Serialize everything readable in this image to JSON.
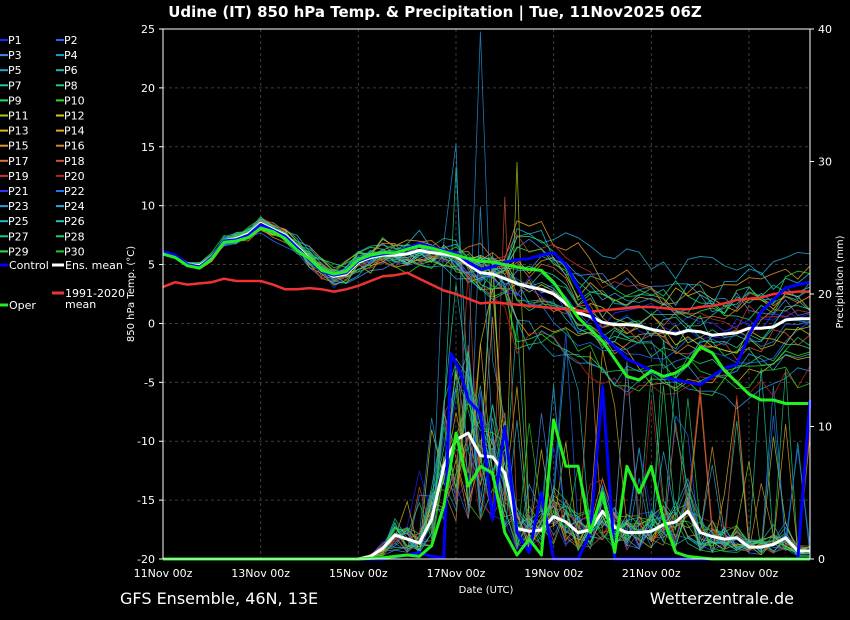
{
  "chart_data": {
    "type": "line",
    "title": "Udine  (IT)  850 hPa Temp. & Precipitation | Tue, 11Nov2025 06Z",
    "ylabel": "850 hPa Temp. (°C)",
    "y2label": "Precipitation (mm)",
    "xlabel": "Date (UTC)",
    "ylim": [
      -20,
      25
    ],
    "y2lim": [
      0,
      40
    ],
    "xlim": [
      0,
      13.25
    ],
    "yticks": [
      25,
      20,
      15,
      10,
      5,
      0,
      -5,
      -10,
      -15,
      -20
    ],
    "y2ticks": [
      40,
      30,
      20,
      10,
      0
    ],
    "x_units": "days since 11Nov 00z",
    "xticks": [
      {
        "x": 0,
        "label": "11Nov 00z"
      },
      {
        "x": 2,
        "label": "13Nov 00z"
      },
      {
        "x": 4,
        "label": "15Nov 00z"
      },
      {
        "x": 6,
        "label": "17Nov 00z"
      },
      {
        "x": 8,
        "label": "19Nov 00z"
      },
      {
        "x": 10,
        "label": "21Nov 00z"
      },
      {
        "x": 12,
        "label": "23Nov 00z"
      }
    ],
    "grid": true,
    "legend_position": "left",
    "legend": [
      {
        "name": "P1",
        "color": "#2222ff"
      },
      {
        "name": "P2",
        "color": "#2266ff"
      },
      {
        "name": "P3",
        "color": "#4488ee"
      },
      {
        "name": "P4",
        "color": "#2299dd"
      },
      {
        "name": "P5",
        "color": "#22aacc"
      },
      {
        "name": "P6",
        "color": "#22bbaa"
      },
      {
        "name": "P7",
        "color": "#22ccaa"
      },
      {
        "name": "P8",
        "color": "#22cc77"
      },
      {
        "name": "P9",
        "color": "#22dd66"
      },
      {
        "name": "P10",
        "color": "#33dd22"
      },
      {
        "name": "P11",
        "color": "#aacc22"
      },
      {
        "name": "P12",
        "color": "#cccc22"
      },
      {
        "name": "P13",
        "color": "#ddbb22"
      },
      {
        "name": "P14",
        "color": "#ddaa22"
      },
      {
        "name": "P15",
        "color": "#dd9933"
      },
      {
        "name": "P16",
        "color": "#cc8833"
      },
      {
        "name": "P17",
        "color": "#dd7733"
      },
      {
        "name": "P18",
        "color": "#cc5533"
      },
      {
        "name": "P19",
        "color": "#cc3333"
      },
      {
        "name": "P20",
        "color": "#bb2222"
      },
      {
        "name": "P21",
        "color": "#3333ff"
      },
      {
        "name": "P22",
        "color": "#2277ee"
      },
      {
        "name": "P23",
        "color": "#3399dd"
      },
      {
        "name": "P24",
        "color": "#22aadd"
      },
      {
        "name": "P25",
        "color": "#22bbcc"
      },
      {
        "name": "P26",
        "color": "#22ccaa"
      },
      {
        "name": "P27",
        "color": "#22cc88"
      },
      {
        "name": "P28",
        "color": "#22cc66"
      },
      {
        "name": "P29",
        "color": "#33dd44"
      },
      {
        "name": "P30",
        "color": "#22cc22"
      },
      {
        "name": "Control",
        "color": "#0000ff"
      },
      {
        "name": "Ens. mean",
        "color": "#ffffff"
      },
      {
        "name": "Oper",
        "color": "#22ee22"
      },
      {
        "name": "1991-2020 mean",
        "color": "#ee3333"
      }
    ],
    "series": [
      {
        "name": "Ens. mean",
        "axis": "temp",
        "color": "#ffffff",
        "x": [
          0,
          0.25,
          0.5,
          0.75,
          1,
          1.25,
          1.5,
          1.75,
          2,
          2.25,
          2.5,
          2.75,
          3,
          3.25,
          3.5,
          3.75,
          4,
          4.25,
          4.5,
          4.75,
          5,
          5.25,
          5.5,
          5.75,
          6,
          6.25,
          6.5,
          6.75,
          7,
          7.25,
          7.5,
          7.75,
          8,
          8.25,
          8.5,
          8.75,
          9,
          9.25,
          9.5,
          9.75,
          10,
          10.25,
          10.5,
          10.75,
          11,
          11.25,
          11.5,
          11.75,
          12,
          12.25,
          12.5,
          12.75,
          13,
          13.25
        ],
        "values": [
          6,
          5.7,
          5,
          4.9,
          5.6,
          7,
          7.2,
          7.6,
          8.5,
          8,
          7.5,
          6.5,
          5.5,
          4.5,
          4,
          4.2,
          5.2,
          5.6,
          5.8,
          5.8,
          5.9,
          6.2,
          6,
          5.9,
          5.7,
          5,
          4.3,
          4.2,
          3.8,
          3.4,
          3.1,
          2.9,
          2.5,
          1.7,
          0.9,
          0.6,
          0.1,
          -0.1,
          -0.1,
          -0.2,
          -0.5,
          -0.7,
          -0.9,
          -0.6,
          -0.7,
          -1,
          -0.9,
          -0.8,
          -0.4,
          -0.4,
          -0.3,
          0.3,
          0.4,
          0.4
        ]
      },
      {
        "name": "1991-2020 mean",
        "axis": "temp",
        "color": "#ee3333",
        "x": [
          0,
          0.25,
          0.5,
          0.75,
          1,
          1.25,
          1.5,
          1.75,
          2,
          2.25,
          2.5,
          2.75,
          3,
          3.25,
          3.5,
          3.75,
          4,
          4.25,
          4.5,
          4.75,
          5,
          5.25,
          5.5,
          5.75,
          6,
          6.25,
          6.5,
          6.75,
          7,
          7.25,
          7.5,
          7.75,
          8,
          8.25,
          8.5,
          8.75,
          9,
          9.25,
          9.5,
          9.75,
          10,
          10.25,
          10.5,
          10.75,
          11,
          11.25,
          11.5,
          11.75,
          12,
          12.25,
          12.5,
          12.75,
          13,
          13.25
        ],
        "values": [
          3.1,
          3.5,
          3.3,
          3.4,
          3.5,
          3.8,
          3.6,
          3.6,
          3.6,
          3.3,
          2.9,
          2.9,
          3,
          2.9,
          2.7,
          2.9,
          3.2,
          3.6,
          4,
          4.1,
          4.3,
          3.8,
          3.3,
          2.8,
          2.5,
          2.1,
          1.7,
          1.8,
          1.7,
          1.6,
          1.5,
          1.4,
          1.3,
          1.2,
          1.1,
          1,
          1.1,
          1.2,
          1.3,
          1.4,
          1.4,
          1.3,
          1.2,
          1.2,
          1.4,
          1.5,
          1.7,
          2,
          2.1,
          2.2,
          2.5,
          2.6,
          2.7,
          2.7
        ]
      },
      {
        "name": "Control",
        "axis": "temp",
        "color": "#0000ff",
        "x": [
          0,
          0.25,
          0.5,
          0.75,
          1,
          1.25,
          1.5,
          1.75,
          2,
          2.25,
          2.5,
          2.75,
          3,
          3.25,
          3.5,
          3.75,
          4,
          4.25,
          4.5,
          4.75,
          5,
          5.25,
          5.5,
          5.75,
          6,
          6.25,
          6.5,
          6.75,
          7,
          7.25,
          7.5,
          7.75,
          8,
          8.25,
          8.5,
          8.75,
          9,
          9.25,
          9.5,
          9.75,
          10,
          10.25,
          10.5,
          10.75,
          11,
          11.25,
          11.5,
          11.75,
          12,
          12.25,
          12.5,
          12.75,
          13,
          13.25
        ],
        "values": [
          6.1,
          5.8,
          5,
          4.8,
          5.6,
          7,
          7.1,
          7.5,
          8.4,
          7.9,
          7.4,
          6.4,
          5.4,
          4.4,
          4.1,
          4.3,
          5.3,
          5.7,
          5.9,
          6,
          6.4,
          6.8,
          6.5,
          6.2,
          6,
          5.2,
          4.6,
          4.8,
          5.2,
          5.4,
          5.5,
          5.8,
          6,
          5,
          3,
          1,
          -1,
          -2,
          -3,
          -3.5,
          -4,
          -4.5,
          -4.8,
          -5,
          -5.2,
          -4.5,
          -3.8,
          -3.5,
          -1,
          1,
          2,
          3,
          3.3,
          3.5
        ]
      },
      {
        "name": "Oper",
        "axis": "temp",
        "color": "#22ee22",
        "x": [
          0,
          0.25,
          0.5,
          0.75,
          1,
          1.25,
          1.5,
          1.75,
          2,
          2.25,
          2.5,
          2.75,
          3,
          3.25,
          3.5,
          3.75,
          4,
          4.25,
          4.5,
          4.75,
          5,
          5.25,
          5.5,
          5.75,
          6,
          6.25,
          6.5,
          6.75,
          7,
          7.25,
          7.5,
          7.75,
          8,
          8.25,
          8.5,
          8.75,
          9,
          9.25,
          9.5,
          9.75,
          10,
          10.25,
          10.5,
          10.75,
          11,
          11.25,
          11.5,
          11.75,
          12,
          12.25,
          12.5,
          12.75,
          13,
          13.25
        ],
        "values": [
          5.9,
          5.6,
          4.9,
          4.7,
          5.5,
          6.9,
          7,
          7.3,
          8.1,
          7.8,
          7.2,
          6.2,
          5.5,
          4.5,
          4.2,
          4.4,
          5.4,
          5.8,
          6,
          6,
          6.3,
          6.6,
          6.4,
          6.1,
          5.8,
          5.5,
          5.3,
          5.2,
          5,
          4.8,
          4.6,
          4.5,
          3.5,
          2,
          0.5,
          -0.5,
          -1.5,
          -3,
          -4.5,
          -4.8,
          -4,
          -4.5,
          -4.2,
          -3.5,
          -2,
          -2.5,
          -4,
          -5,
          -6,
          -6.5,
          -6.5,
          -6.8,
          -6.8,
          -6.8
        ]
      },
      {
        "name": "Ens. mean",
        "axis": "precip",
        "color": "#ffffff",
        "x": [
          0,
          0.5,
          1,
          1.5,
          2,
          2.5,
          3,
          3.5,
          4,
          4.25,
          4.5,
          4.75,
          5,
          5.25,
          5.5,
          5.75,
          6,
          6.25,
          6.5,
          6.75,
          7,
          7.25,
          7.5,
          7.75,
          8,
          8.25,
          8.5,
          8.75,
          9,
          9.25,
          9.5,
          9.75,
          10,
          10.25,
          10.5,
          10.75,
          11,
          11.25,
          11.5,
          11.75,
          12,
          12.25,
          12.5,
          12.75,
          13,
          13.25
        ],
        "values": [
          0,
          0,
          0,
          0,
          0,
          0,
          0,
          0,
          0,
          0.2,
          0.8,
          1.8,
          1.5,
          1.2,
          3,
          7,
          9,
          9.5,
          7.8,
          7.7,
          6.5,
          2.3,
          2.1,
          2.2,
          3.2,
          2.8,
          2,
          2.2,
          3.6,
          2.4,
          2,
          2,
          2.1,
          2.6,
          2.8,
          3.6,
          2,
          1.7,
          1.5,
          1.6,
          0.9,
          0.9,
          1.1,
          1.6,
          0.6,
          0.6
        ]
      },
      {
        "name": "Control",
        "axis": "precip",
        "color": "#0000ff",
        "x": [
          0,
          1,
          2,
          3,
          4,
          4.5,
          5,
          5.25,
          5.5,
          5.75,
          5.9,
          6.1,
          6.25,
          6.5,
          6.75,
          7,
          7.25,
          7.5,
          7.75,
          8,
          8.25,
          8.5,
          8.75,
          9,
          9.25,
          9.5,
          9.75,
          10,
          10.5,
          11,
          11.5,
          12,
          12.5,
          13,
          13.25
        ],
        "values": [
          0,
          0,
          0,
          0,
          0,
          0,
          0.3,
          0.5,
          0.2,
          0.1,
          15.5,
          14,
          12,
          11,
          3,
          10,
          2,
          0.5,
          5,
          0,
          0,
          0,
          2,
          13,
          0,
          0,
          0,
          0,
          0,
          0,
          0,
          0,
          0,
          0,
          12
        ]
      },
      {
        "name": "Oper",
        "axis": "precip",
        "color": "#22ee22",
        "x": [
          0,
          1,
          2,
          3,
          4,
          4.5,
          5,
          5.25,
          5.5,
          5.75,
          6,
          6.25,
          6.5,
          6.75,
          7,
          7.25,
          7.5,
          7.75,
          8,
          8.25,
          8.5,
          8.75,
          9,
          9.25,
          9.5,
          9.75,
          10,
          10.25,
          10.5,
          10.75,
          11,
          11.25,
          11.5,
          12,
          12.5,
          13,
          13.25
        ],
        "values": [
          0,
          0,
          0,
          0,
          0,
          0.1,
          0.3,
          0.2,
          1,
          4,
          9.5,
          5.5,
          7,
          6.5,
          2,
          0.3,
          1.5,
          0.3,
          10.5,
          7,
          7,
          2,
          5,
          0.5,
          7,
          5,
          7,
          3,
          0.5,
          0.2,
          0.1,
          0,
          0,
          0,
          0,
          0,
          0
        ]
      }
    ]
  },
  "footer": {
    "source": "GFS Ensemble, 46N, 13E",
    "site": "Wetterzentrale.de"
  }
}
